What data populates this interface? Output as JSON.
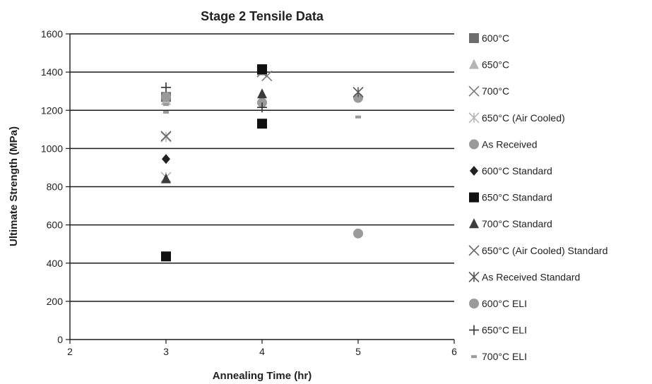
{
  "chart_data": {
    "type": "scatter",
    "title": "Stage 2 Tensile Data",
    "xlabel": "Annealing Time (hr)",
    "ylabel": "Ultimate Strength (MPa)",
    "xlim": [
      2,
      6
    ],
    "ylim": [
      0,
      1600
    ],
    "x_ticks": [
      "2",
      "3",
      "4",
      "5",
      "6"
    ],
    "y_ticks": [
      "0",
      "200",
      "400",
      "600",
      "800",
      "1000",
      "1200",
      "1400",
      "1600"
    ],
    "grid": "horizontal",
    "legend_position": "right",
    "series": [
      {
        "name": "600°C",
        "marker": "square",
        "color": "#6d6d6d",
        "points": [
          [
            3,
            1270
          ],
          [
            4,
            1410
          ]
        ]
      },
      {
        "name": "650°C",
        "marker": "triangle",
        "color": "#b5b5b5",
        "points": [
          [
            3,
            1250
          ]
        ]
      },
      {
        "name": "700°C",
        "marker": "x",
        "color": "#7a7a7a",
        "points": [
          [
            4,
            1400
          ],
          [
            4.05,
            1380
          ]
        ]
      },
      {
        "name": "650°C (Air Cooled)",
        "marker": "asterisk",
        "color": "#b5b5b5",
        "points": [
          [
            3,
            1060
          ],
          [
            3,
            850
          ]
        ]
      },
      {
        "name": "As Received",
        "marker": "circle",
        "color": "#9a9a9a",
        "points": [
          [
            3,
            1270
          ],
          [
            4,
            1240
          ],
          [
            5,
            1265
          ]
        ]
      },
      {
        "name": "600°C Standard",
        "marker": "diamond",
        "color": "#222222",
        "points": [
          [
            3,
            945
          ]
        ]
      },
      {
        "name": "650°C Standard",
        "marker": "square",
        "color": "#111111",
        "points": [
          [
            3,
            435
          ],
          [
            4,
            1130
          ],
          [
            4,
            1415
          ]
        ]
      },
      {
        "name": "700°C Standard",
        "marker": "triangle",
        "color": "#3c3c3c",
        "points": [
          [
            3,
            840
          ],
          [
            4,
            1285
          ]
        ]
      },
      {
        "name": "650°C (Air Cooled) Standard",
        "marker": "x",
        "color": "#666666",
        "points": [
          [
            3,
            1065
          ]
        ]
      },
      {
        "name": "As Received Standard",
        "marker": "asterisk",
        "color": "#555555",
        "points": [
          [
            5,
            1295
          ]
        ]
      },
      {
        "name": "600°C ELI",
        "marker": "circle",
        "color": "#9a9a9a",
        "points": [
          [
            5,
            555
          ]
        ]
      },
      {
        "name": "650°C ELI",
        "marker": "plus",
        "color": "#333333",
        "points": [
          [
            3,
            1320
          ],
          [
            4,
            1215
          ]
        ]
      },
      {
        "name": "700°C ELI",
        "marker": "dash",
        "color": "#9a9a9a",
        "points": [
          [
            3,
            1230
          ],
          [
            3,
            1190
          ],
          [
            5,
            1165
          ]
        ]
      }
    ]
  }
}
